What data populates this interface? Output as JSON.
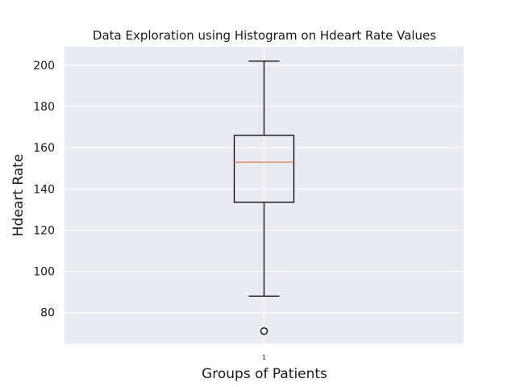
{
  "chart_data": {
    "type": "box",
    "title": "Data Exploration using Histogram on Hdeart Rate Values",
    "xlabel": "Groups of Patients",
    "ylabel": "Hdeart Rate",
    "ylim": [
      65,
      209
    ],
    "yticks": [
      80,
      100,
      120,
      140,
      160,
      180,
      200
    ],
    "categories": [
      "1"
    ],
    "boxes": [
      {
        "category": "1",
        "whisker_low": 88,
        "q1": 133.5,
        "median": 153,
        "q3": 166,
        "whisker_high": 202,
        "outliers": [
          71
        ]
      }
    ],
    "grid": true,
    "colors": {
      "background": "#eaeaf2",
      "grid": "#ffffff",
      "box": "#000000",
      "median": "#dd8452"
    }
  }
}
